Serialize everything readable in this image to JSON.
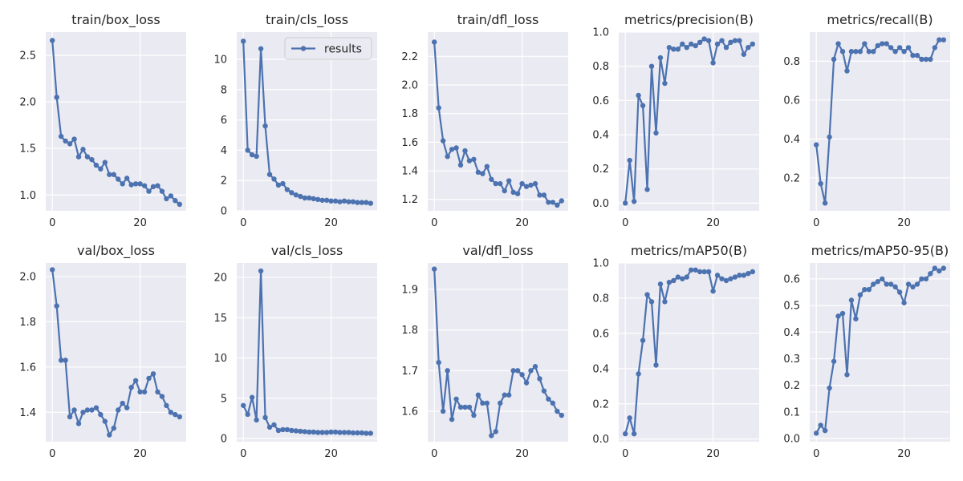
{
  "chart_data": [
    {
      "type": "line",
      "title": "train/box_loss",
      "x": [
        0,
        1,
        2,
        3,
        4,
        5,
        6,
        7,
        8,
        9,
        10,
        11,
        12,
        13,
        14,
        15,
        16,
        17,
        18,
        19,
        20,
        21,
        22,
        23,
        24,
        25,
        26,
        27,
        28,
        29
      ],
      "series": [
        {
          "name": "results",
          "values": [
            2.66,
            2.05,
            1.63,
            1.58,
            1.55,
            1.6,
            1.41,
            1.49,
            1.41,
            1.38,
            1.32,
            1.28,
            1.35,
            1.22,
            1.22,
            1.17,
            1.12,
            1.18,
            1.11,
            1.12,
            1.12,
            1.1,
            1.04,
            1.09,
            1.1,
            1.04,
            0.96,
            0.99,
            0.94,
            0.9
          ]
        }
      ],
      "ylim": [
        0.83,
        2.75
      ],
      "yticks": [
        1.0,
        1.5,
        2.0,
        2.5
      ],
      "ytick_labels": [
        "1.0",
        "1.5",
        "2.0",
        "2.5"
      ],
      "xticks": [
        0,
        20
      ],
      "xtick_labels": [
        "0",
        "20"
      ]
    },
    {
      "type": "line",
      "title": "train/cls_loss",
      "x": [
        0,
        1,
        2,
        3,
        4,
        5,
        6,
        7,
        8,
        9,
        10,
        11,
        12,
        13,
        14,
        15,
        16,
        17,
        18,
        19,
        20,
        21,
        22,
        23,
        24,
        25,
        26,
        27,
        28,
        29
      ],
      "series": [
        {
          "name": "results",
          "values": [
            11.2,
            4.0,
            3.7,
            3.6,
            10.7,
            5.6,
            2.4,
            2.1,
            1.7,
            1.8,
            1.4,
            1.2,
            1.05,
            0.95,
            0.85,
            0.85,
            0.8,
            0.75,
            0.7,
            0.7,
            0.65,
            0.65,
            0.6,
            0.65,
            0.6,
            0.6,
            0.55,
            0.55,
            0.55,
            0.5
          ]
        }
      ],
      "ylim": [
        0,
        11.8
      ],
      "yticks": [
        0,
        2,
        4,
        6,
        8,
        10
      ],
      "ytick_labels": [
        "0",
        "2",
        "4",
        "6",
        "8",
        "10"
      ],
      "xticks": [
        0,
        20
      ],
      "xtick_labels": [
        "0",
        "20"
      ],
      "legend": {
        "position": "top-right",
        "entries": [
          "results"
        ]
      }
    },
    {
      "type": "line",
      "title": "train/dfl_loss",
      "x": [
        0,
        1,
        2,
        3,
        4,
        5,
        6,
        7,
        8,
        9,
        10,
        11,
        12,
        13,
        14,
        15,
        16,
        17,
        18,
        19,
        20,
        21,
        22,
        23,
        24,
        25,
        26,
        27,
        28,
        29
      ],
      "series": [
        {
          "name": "results",
          "values": [
            2.3,
            1.84,
            1.61,
            1.5,
            1.55,
            1.56,
            1.44,
            1.54,
            1.47,
            1.48,
            1.39,
            1.38,
            1.43,
            1.34,
            1.31,
            1.31,
            1.26,
            1.33,
            1.25,
            1.24,
            1.31,
            1.29,
            1.3,
            1.31,
            1.23,
            1.23,
            1.18,
            1.18,
            1.16,
            1.19
          ]
        }
      ],
      "ylim": [
        1.12,
        2.37
      ],
      "yticks": [
        1.2,
        1.4,
        1.6,
        1.8,
        2.0,
        2.2
      ],
      "ytick_labels": [
        "1.2",
        "1.4",
        "1.6",
        "1.8",
        "2.0",
        "2.2"
      ],
      "xticks": [
        0,
        20
      ],
      "xtick_labels": [
        "0",
        "20"
      ]
    },
    {
      "type": "line",
      "title": "metrics/precision(B)",
      "x": [
        0,
        1,
        2,
        3,
        4,
        5,
        6,
        7,
        8,
        9,
        10,
        11,
        12,
        13,
        14,
        15,
        16,
        17,
        18,
        19,
        20,
        21,
        22,
        23,
        24,
        25,
        26,
        27,
        28,
        29
      ],
      "series": [
        {
          "name": "results",
          "values": [
            0.0,
            0.25,
            0.01,
            0.63,
            0.57,
            0.08,
            0.8,
            0.41,
            0.85,
            0.7,
            0.91,
            0.9,
            0.9,
            0.93,
            0.91,
            0.93,
            0.92,
            0.94,
            0.96,
            0.95,
            0.82,
            0.93,
            0.95,
            0.91,
            0.94,
            0.95,
            0.95,
            0.87,
            0.91,
            0.93
          ]
        }
      ],
      "ylim": [
        -0.045,
        1.0
      ],
      "yticks": [
        0.0,
        0.2,
        0.4,
        0.6,
        0.8,
        1.0
      ],
      "ytick_labels": [
        "0.0",
        "0.2",
        "0.4",
        "0.6",
        "0.8",
        "1.0"
      ],
      "xticks": [
        0,
        20
      ],
      "xtick_labels": [
        "0",
        "20"
      ]
    },
    {
      "type": "line",
      "title": "metrics/recall(B)",
      "x": [
        0,
        1,
        2,
        3,
        4,
        5,
        6,
        7,
        8,
        9,
        10,
        11,
        12,
        13,
        14,
        15,
        16,
        17,
        18,
        19,
        20,
        21,
        22,
        23,
        24,
        25,
        26,
        27,
        28,
        29
      ],
      "series": [
        {
          "name": "results",
          "values": [
            0.37,
            0.17,
            0.07,
            0.41,
            0.81,
            0.89,
            0.85,
            0.75,
            0.85,
            0.85,
            0.85,
            0.89,
            0.85,
            0.85,
            0.88,
            0.89,
            0.89,
            0.87,
            0.85,
            0.87,
            0.85,
            0.87,
            0.83,
            0.83,
            0.81,
            0.81,
            0.81,
            0.87,
            0.91,
            0.91
          ]
        }
      ],
      "ylim": [
        0.03,
        0.95
      ],
      "yticks": [
        0.2,
        0.4,
        0.6,
        0.8
      ],
      "ytick_labels": [
        "0.2",
        "0.4",
        "0.6",
        "0.8"
      ],
      "xticks": [
        0,
        20
      ],
      "xtick_labels": [
        "0",
        "20"
      ]
    },
    {
      "type": "line",
      "title": "val/box_loss",
      "x": [
        0,
        1,
        2,
        3,
        4,
        5,
        6,
        7,
        8,
        9,
        10,
        11,
        12,
        13,
        14,
        15,
        16,
        17,
        18,
        19,
        20,
        21,
        22,
        23,
        24,
        25,
        26,
        27,
        28,
        29
      ],
      "series": [
        {
          "name": "results",
          "values": [
            2.03,
            1.87,
            1.63,
            1.63,
            1.38,
            1.41,
            1.35,
            1.4,
            1.41,
            1.41,
            1.42,
            1.39,
            1.36,
            1.3,
            1.33,
            1.41,
            1.44,
            1.42,
            1.51,
            1.54,
            1.49,
            1.49,
            1.55,
            1.57,
            1.49,
            1.47,
            1.43,
            1.4,
            1.39,
            1.38
          ]
        }
      ],
      "ylim": [
        1.27,
        2.06
      ],
      "yticks": [
        1.4,
        1.6,
        1.8,
        2.0
      ],
      "ytick_labels": [
        "1.4",
        "1.6",
        "1.8",
        "2.0"
      ],
      "xticks": [
        0,
        20
      ],
      "xtick_labels": [
        "0",
        "20"
      ]
    },
    {
      "type": "line",
      "title": "val/cls_loss",
      "x": [
        0,
        1,
        2,
        3,
        4,
        5,
        6,
        7,
        8,
        9,
        10,
        11,
        12,
        13,
        14,
        15,
        16,
        17,
        18,
        19,
        20,
        21,
        22,
        23,
        24,
        25,
        26,
        27,
        28,
        29
      ],
      "series": [
        {
          "name": "results",
          "values": [
            4.1,
            3.0,
            5.1,
            2.3,
            20.8,
            2.6,
            1.4,
            1.7,
            1.0,
            1.1,
            1.1,
            1.0,
            0.95,
            0.9,
            0.85,
            0.8,
            0.8,
            0.75,
            0.75,
            0.75,
            0.8,
            0.8,
            0.75,
            0.75,
            0.75,
            0.7,
            0.7,
            0.7,
            0.65,
            0.65
          ]
        }
      ],
      "ylim": [
        -0.4,
        21.8
      ],
      "yticks": [
        0,
        5,
        10,
        15,
        20
      ],
      "ytick_labels": [
        "0",
        "5",
        "10",
        "15",
        "20"
      ],
      "xticks": [
        0,
        20
      ],
      "xtick_labels": [
        "0",
        "20"
      ]
    },
    {
      "type": "line",
      "title": "val/dfl_loss",
      "x": [
        0,
        1,
        2,
        3,
        4,
        5,
        6,
        7,
        8,
        9,
        10,
        11,
        12,
        13,
        14,
        15,
        16,
        17,
        18,
        19,
        20,
        21,
        22,
        23,
        24,
        25,
        26,
        27,
        28,
        29
      ],
      "series": [
        {
          "name": "results",
          "values": [
            1.95,
            1.72,
            1.6,
            1.7,
            1.58,
            1.63,
            1.61,
            1.61,
            1.61,
            1.59,
            1.64,
            1.62,
            1.62,
            1.54,
            1.55,
            1.62,
            1.64,
            1.64,
            1.7,
            1.7,
            1.69,
            1.67,
            1.7,
            1.71,
            1.68,
            1.65,
            1.63,
            1.62,
            1.6,
            1.59
          ]
        }
      ],
      "ylim": [
        1.525,
        1.965
      ],
      "yticks": [
        1.6,
        1.7,
        1.8,
        1.9
      ],
      "ytick_labels": [
        "1.6",
        "1.7",
        "1.8",
        "1.9"
      ],
      "xticks": [
        0,
        20
      ],
      "xtick_labels": [
        "0",
        "20"
      ]
    },
    {
      "type": "line",
      "title": "metrics/mAP50(B)",
      "x": [
        0,
        1,
        2,
        3,
        4,
        5,
        6,
        7,
        8,
        9,
        10,
        11,
        12,
        13,
        14,
        15,
        16,
        17,
        18,
        19,
        20,
        21,
        22,
        23,
        24,
        25,
        26,
        27,
        28,
        29
      ],
      "series": [
        {
          "name": "results",
          "values": [
            0.03,
            0.12,
            0.03,
            0.37,
            0.56,
            0.82,
            0.78,
            0.42,
            0.88,
            0.78,
            0.89,
            0.9,
            0.92,
            0.91,
            0.92,
            0.96,
            0.96,
            0.95,
            0.95,
            0.95,
            0.84,
            0.93,
            0.91,
            0.9,
            0.91,
            0.92,
            0.93,
            0.93,
            0.94,
            0.95
          ]
        }
      ],
      "ylim": [
        -0.015,
        1.0
      ],
      "yticks": [
        0.0,
        0.2,
        0.4,
        0.6,
        0.8,
        1.0
      ],
      "ytick_labels": [
        "0.0",
        "0.2",
        "0.4",
        "0.6",
        "0.8",
        "1.0"
      ],
      "xticks": [
        0,
        20
      ],
      "xtick_labels": [
        "0",
        "20"
      ]
    },
    {
      "type": "line",
      "title": "metrics/mAP50-95(B)",
      "x": [
        0,
        1,
        2,
        3,
        4,
        5,
        6,
        7,
        8,
        9,
        10,
        11,
        12,
        13,
        14,
        15,
        16,
        17,
        18,
        19,
        20,
        21,
        22,
        23,
        24,
        25,
        26,
        27,
        28,
        29
      ],
      "series": [
        {
          "name": "results",
          "values": [
            0.02,
            0.05,
            0.03,
            0.19,
            0.29,
            0.46,
            0.47,
            0.24,
            0.52,
            0.45,
            0.54,
            0.56,
            0.56,
            0.58,
            0.59,
            0.6,
            0.58,
            0.58,
            0.57,
            0.55,
            0.51,
            0.58,
            0.57,
            0.58,
            0.6,
            0.6,
            0.62,
            0.64,
            0.63,
            0.64
          ]
        }
      ],
      "ylim": [
        -0.012,
        0.66
      ],
      "yticks": [
        0.0,
        0.1,
        0.2,
        0.3,
        0.4,
        0.5,
        0.6
      ],
      "ytick_labels": [
        "0.0",
        "0.1",
        "0.2",
        "0.3",
        "0.4",
        "0.5",
        "0.6"
      ],
      "xticks": [
        0,
        20
      ],
      "xtick_labels": [
        "0",
        "20"
      ]
    }
  ],
  "style": {
    "panel_bg": "#eaeaf2",
    "grid_color": "#ffffff",
    "line_color": "#4c72b0",
    "text_color": "#262626"
  }
}
